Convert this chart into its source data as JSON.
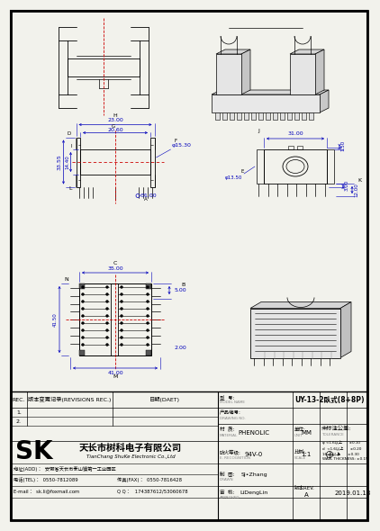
{
  "bg_color": "#f2f2ec",
  "blue": "#0000bb",
  "red": "#cc0000",
  "black": "#000000",
  "gray": "#888888",
  "lgray": "#bbbbbb",
  "company_cn": "天长市树科电子有限公司",
  "company_en": "TianChang ShuKe Electronic Co.,Ltd",
  "address": "地址(ADD)：  安徽省天长市泰山镇第一工业园区",
  "tel": "电话(TEL)：  0550-7812089",
  "fax_label": "传真(FAX)：  0550-7816428",
  "email": "E-mail：  sk.li@foxmail.com",
  "qq": "Q Q：   174387612/53060678",
  "material": "PHENOLIC",
  "fire_level": "94V-0",
  "unit": "MM",
  "scale": "1:1",
  "drawn": "SJ•Zhang",
  "approved": "LiDengLin",
  "date": "2019.01.18",
  "rev": "A",
  "model": "UY-13-2臥式(8+8P)"
}
